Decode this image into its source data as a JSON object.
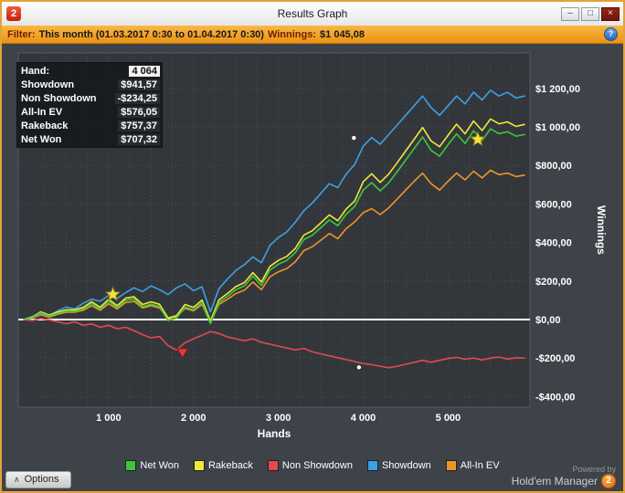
{
  "window": {
    "title": "Results Graph",
    "app_icon_text": "2",
    "controls": {
      "minimize": "–",
      "maximize": "□",
      "close": "×"
    }
  },
  "filter": {
    "label": "Filter:",
    "range": "This month (01.03.2017 0:30 to 01.04.2017 0:30)",
    "winnings_label": "Winnings:",
    "winnings_value": "$1 045,08",
    "help_icon": "?"
  },
  "tooltip": {
    "rows": [
      {
        "label": "Hand:",
        "value": "4 064"
      },
      {
        "label": "Showdown",
        "value": "$941,57"
      },
      {
        "label": "Non Showdown",
        "value": "-$234,25"
      },
      {
        "label": "All-In EV",
        "value": "$576,05"
      },
      {
        "label": "Rakeback",
        "value": "$757,37"
      },
      {
        "label": "Net Won",
        "value": "$707,32"
      }
    ]
  },
  "legend": {
    "items": [
      {
        "label": "Net Won",
        "color": "#3fc63a"
      },
      {
        "label": "Rakeback",
        "color": "#efe83b"
      },
      {
        "label": "Non Showdown",
        "color": "#e24a50"
      },
      {
        "label": "Showdown",
        "color": "#3da0e0"
      },
      {
        "label": "All-In EV",
        "color": "#ef9526"
      }
    ]
  },
  "options": {
    "label": "Options",
    "chevron": "∧"
  },
  "powered_by": {
    "line1": "Powered by",
    "line2": "Hold'em Manager",
    "logo": "2"
  },
  "chart_data": {
    "type": "line",
    "xlabel": "Hands",
    "ylabel": "Winnings",
    "xlim": [
      0,
      5900
    ],
    "ylim": [
      -400,
      1200
    ],
    "grid_step_x": 250,
    "x_ticks": [
      {
        "value": 1000,
        "label": "1 000"
      },
      {
        "value": 2000,
        "label": "2 000"
      },
      {
        "value": 3000,
        "label": "3 000"
      },
      {
        "value": 4000,
        "label": "4 000"
      },
      {
        "value": 5000,
        "label": "5 000"
      }
    ],
    "y_ticks": [
      {
        "value": 1200,
        "label": "$1 200,00"
      },
      {
        "value": 1000,
        "label": "$1 000,00"
      },
      {
        "value": 800,
        "label": "$800,00"
      },
      {
        "value": 600,
        "label": "$600,00"
      },
      {
        "value": 400,
        "label": "$400,00"
      },
      {
        "value": 200,
        "label": "$200,00"
      },
      {
        "value": 0,
        "label": "$0,00"
      },
      {
        "value": -200,
        "label": "-$200,00"
      },
      {
        "value": -400,
        "label": "-$400,00"
      }
    ],
    "series": [
      {
        "name": "Non Showdown",
        "color": "#e24a50",
        "x0": 0,
        "dx": 100,
        "y": [
          0,
          -5,
          5,
          -2,
          -12,
          -22,
          -12,
          -30,
          -22,
          -40,
          -30,
          -48,
          -40,
          -58,
          -78,
          -95,
          -88,
          -135,
          -158,
          -120,
          -100,
          -82,
          -62,
          -72,
          -90,
          -100,
          -110,
          -100,
          -118,
          -128,
          -138,
          -148,
          -158,
          -150,
          -168,
          -178,
          -188,
          -198,
          -208,
          -218,
          -228,
          -234,
          -242,
          -250,
          -242,
          -232,
          -222,
          -212,
          -222,
          -212,
          -202,
          -196,
          -206,
          -200,
          -210,
          -200,
          -195,
          -205,
          -198,
          -200
        ]
      },
      {
        "name": "All-In EV",
        "color": "#ef9526",
        "x0": 0,
        "dx": 100,
        "y": [
          0,
          8,
          25,
          12,
          28,
          38,
          38,
          48,
          72,
          48,
          82,
          55,
          88,
          95,
          60,
          72,
          60,
          5,
          15,
          58,
          45,
          78,
          -15,
          78,
          105,
          135,
          152,
          195,
          155,
          222,
          248,
          265,
          300,
          358,
          378,
          412,
          447,
          420,
          472,
          507,
          555,
          576,
          545,
          580,
          625,
          672,
          718,
          760,
          705,
          672,
          718,
          760,
          725,
          770,
          735,
          775,
          752,
          760,
          742,
          750
        ]
      },
      {
        "name": "Showdown",
        "color": "#3da0e0",
        "x0": 0,
        "dx": 100,
        "y": [
          0,
          15,
          30,
          20,
          45,
          65,
          55,
          85,
          105,
          95,
          125,
          110,
          140,
          165,
          145,
          175,
          155,
          130,
          165,
          185,
          150,
          170,
          40,
          160,
          210,
          255,
          285,
          325,
          295,
          385,
          425,
          455,
          505,
          565,
          605,
          655,
          705,
          685,
          755,
          805,
          900,
          945,
          910,
          960,
          1010,
          1060,
          1110,
          1160,
          1100,
          1060,
          1110,
          1160,
          1120,
          1180,
          1140,
          1190,
          1160,
          1180,
          1150,
          1160
        ]
      },
      {
        "name": "Rakeback",
        "color": "#efe83b",
        "x0": 0,
        "dx": 100,
        "y": [
          0,
          13,
          40,
          23,
          39,
          50,
          50,
          63,
          92,
          64,
          105,
          72,
          111,
          118,
          78,
          92,
          79,
          8,
          20,
          78,
          63,
          101,
          -8,
          102,
          135,
          171,
          192,
          243,
          195,
          276,
          307,
          328,
          369,
          438,
          461,
          502,
          543,
          513,
          574,
          615,
          715,
          757,
          712,
          755,
          814,
          875,
          936,
          997,
          927,
          897,
          957,
          1014,
          964,
          1031,
          981,
          1041,
          1016,
          1026,
          1003,
          1013
        ]
      },
      {
        "name": "Net Won",
        "color": "#3fc63a",
        "x0": 0,
        "dx": 100,
        "y": [
          0,
          10,
          35,
          18,
          33,
          43,
          43,
          55,
          83,
          55,
          95,
          62,
          100,
          107,
          67,
          80,
          67,
          -5,
          7,
          65,
          50,
          88,
          -22,
          88,
          120,
          155,
          175,
          225,
          177,
          257,
          287,
          307,
          347,
          415,
          437,
          477,
          517,
          487,
          547,
          587,
          672,
          711,
          668,
          710,
          768,
          828,
          888,
          948,
          878,
          848,
          908,
          964,
          914,
          980,
          930,
          990,
          965,
          975,
          952,
          960
        ]
      }
    ],
    "markers": [
      {
        "type": "star",
        "x": 1050,
        "y": 130,
        "color": "#f3e43c"
      },
      {
        "type": "star",
        "x": 5350,
        "y": 935,
        "color": "#f3e43c"
      },
      {
        "type": "triangle-down",
        "x": 1870,
        "y": -175,
        "color": "#e03940"
      },
      {
        "type": "dot",
        "x": 3890,
        "y": 943,
        "color": "#ffffff"
      },
      {
        "type": "dot",
        "x": 3950,
        "y": -248,
        "color": "#ffffff"
      }
    ]
  }
}
